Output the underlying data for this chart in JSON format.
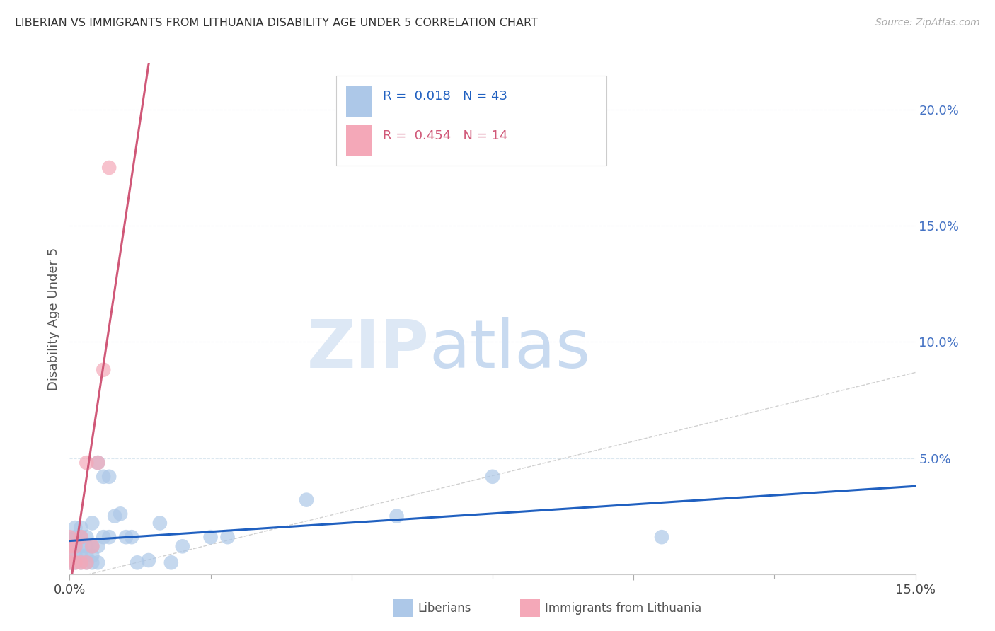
{
  "title": "LIBERIAN VS IMMIGRANTS FROM LITHUANIA DISABILITY AGE UNDER 5 CORRELATION CHART",
  "source": "Source: ZipAtlas.com",
  "ylabel": "Disability Age Under 5",
  "xlim": [
    0.0,
    0.15
  ],
  "ylim": [
    0.0,
    0.22
  ],
  "liberian_R": 0.018,
  "liberian_N": 43,
  "lithuania_R": 0.454,
  "lithuania_N": 14,
  "liberian_color": "#adc8e8",
  "lithuania_color": "#f4a8b8",
  "liberian_line_color": "#2060c0",
  "lithuania_line_color": "#d05878",
  "diag_line_color": "#d0d0d0",
  "background_color": "#ffffff",
  "grid_color": "#dce8f0",
  "right_tick_color": "#4472c4",
  "liberian_x": [
    0.0,
    0.0,
    0.0,
    0.001,
    0.001,
    0.001,
    0.001,
    0.001,
    0.002,
    0.002,
    0.002,
    0.002,
    0.002,
    0.003,
    0.003,
    0.003,
    0.003,
    0.004,
    0.004,
    0.004,
    0.004,
    0.005,
    0.005,
    0.005,
    0.006,
    0.006,
    0.007,
    0.007,
    0.008,
    0.009,
    0.01,
    0.011,
    0.012,
    0.014,
    0.016,
    0.018,
    0.02,
    0.025,
    0.028,
    0.042,
    0.058,
    0.075,
    0.105
  ],
  "liberian_y": [
    0.005,
    0.01,
    0.015,
    0.005,
    0.008,
    0.012,
    0.016,
    0.02,
    0.005,
    0.008,
    0.012,
    0.016,
    0.02,
    0.005,
    0.008,
    0.012,
    0.016,
    0.005,
    0.008,
    0.012,
    0.022,
    0.005,
    0.012,
    0.048,
    0.016,
    0.042,
    0.042,
    0.016,
    0.025,
    0.026,
    0.016,
    0.016,
    0.005,
    0.006,
    0.022,
    0.005,
    0.012,
    0.016,
    0.016,
    0.032,
    0.025,
    0.042,
    0.016
  ],
  "lithuania_x": [
    0.0,
    0.0,
    0.0,
    0.0,
    0.001,
    0.001,
    0.002,
    0.002,
    0.003,
    0.003,
    0.004,
    0.005,
    0.006,
    0.007
  ],
  "lithuania_y": [
    0.005,
    0.008,
    0.012,
    0.016,
    0.005,
    0.012,
    0.005,
    0.016,
    0.005,
    0.048,
    0.012,
    0.048,
    0.088,
    0.175
  ]
}
